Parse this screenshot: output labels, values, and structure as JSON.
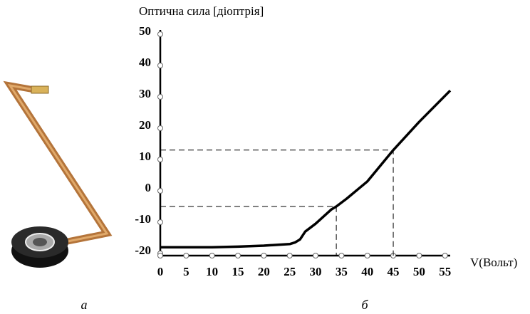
{
  "chart_data": {
    "type": "line",
    "ylabel": "Оптична сила [діоптрія]",
    "xlabel": "V(Вольт)",
    "x": [
      0,
      5,
      10,
      15,
      20,
      25,
      26,
      27,
      28,
      30,
      33,
      34,
      36,
      40,
      45,
      50,
      56
    ],
    "series": [
      {
        "color": "#000000",
        "values": [
          -18,
          -18,
          -18,
          -17.8,
          -17.5,
          -17,
          -16.5,
          -15.5,
          -13,
          -10.5,
          -6,
          -5,
          -2.5,
          3,
          13,
          22,
          32
        ]
      }
    ],
    "markers": [
      {
        "x": 34,
        "y": -5
      },
      {
        "x": 45,
        "y": 13
      }
    ],
    "xlim": [
      0,
      56
    ],
    "ylim": [
      -20,
      50
    ],
    "xticks": [
      0,
      5,
      10,
      15,
      20,
      25,
      30,
      35,
      40,
      45,
      50,
      55
    ],
    "yticks": [
      -20,
      -10,
      0,
      10,
      20,
      30,
      40,
      50
    ]
  },
  "captions": {
    "left": "а",
    "right": "б"
  }
}
